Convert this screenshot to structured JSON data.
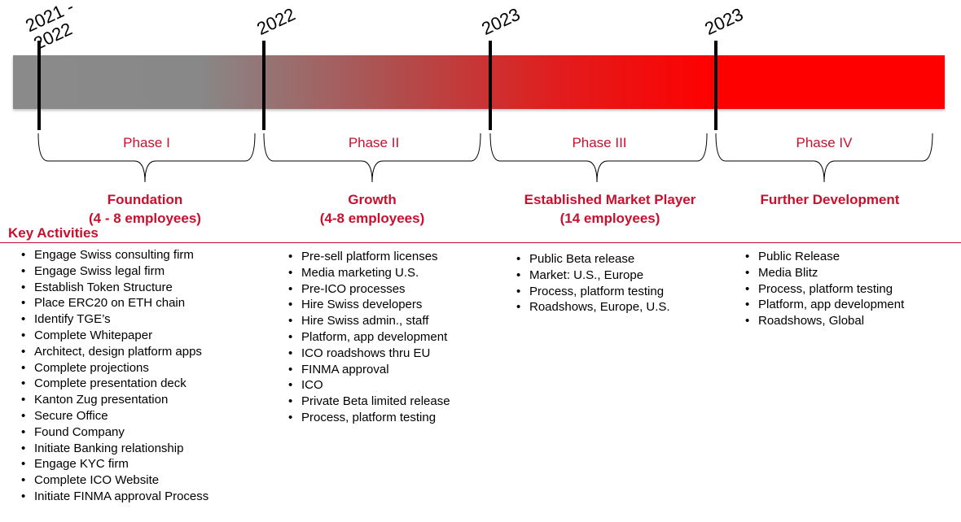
{
  "timeline": {
    "years": [
      "2021 -\n2022",
      "2022",
      "2023",
      "2023"
    ]
  },
  "phases": [
    {
      "label": "Phase I",
      "title": "Foundation",
      "subtitle": "(4 - 8 employees)",
      "activities": [
        "Engage Swiss consulting firm",
        "Engage Swiss legal firm",
        "Establish Token Structure",
        "Place ERC20 on ETH chain",
        "Identify TGE’s",
        "Complete Whitepaper",
        "Architect, design platform apps",
        "Complete projections",
        "Complete presentation deck",
        "Kanton Zug presentation",
        "Secure Office",
        "Found Company",
        "Initiate Banking relationship",
        "Engage KYC firm",
        "Complete ICO Website",
        "Initiate FINMA approval Process"
      ]
    },
    {
      "label": "Phase II",
      "title": "Growth",
      "subtitle": "(4-8 employees)",
      "activities": [
        "Pre-sell platform licenses",
        "Media marketing U.S.",
        "Pre-ICO processes",
        "Hire Swiss developers",
        "Hire Swiss admin., staff",
        "Platform, app development",
        "ICO roadshows thru EU",
        "FINMA approval",
        "ICO",
        "Private Beta limited release",
        "Process, platform testing"
      ]
    },
    {
      "label": "Phase III",
      "title": "Established Market Player",
      "subtitle": "(14 employees)",
      "activities": [
        "Public Beta release",
        "Market:  U.S., Europe",
        "Process, platform testing",
        "Roadshows, Europe, U.S."
      ]
    },
    {
      "label": "Phase IV",
      "title": "Further Development",
      "subtitle": "",
      "activities": [
        "Public Release",
        "Media Blitz",
        "Process, platform testing",
        "Platform, app development",
        "Roadshows, Global"
      ]
    }
  ],
  "key_activities_title": "Key Activities",
  "colors": {
    "accent": "#c8102e",
    "bar_start": "#888888",
    "bar_end": "#ff0000"
  }
}
